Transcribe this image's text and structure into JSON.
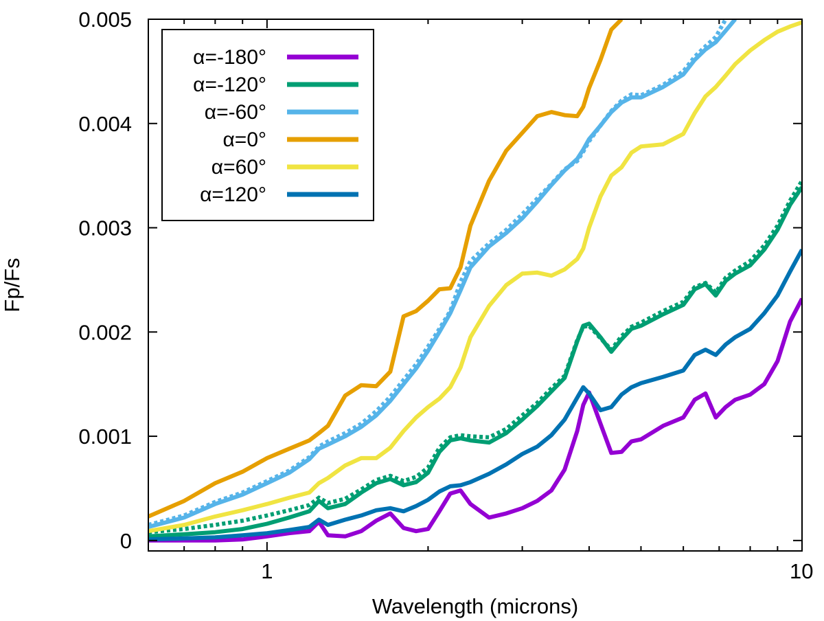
{
  "chart_data": {
    "type": "line",
    "xlabel": "Wavelength (microns)",
    "ylabel": "Fp/Fs",
    "xscale": "log",
    "xlim": [
      0.6,
      10
    ],
    "ylim": [
      -0.0001,
      0.005
    ],
    "legend_position": "top-left",
    "grid": false,
    "x_ticks": [
      {
        "value": 1,
        "label": "1"
      },
      {
        "value": 10,
        "label": "10"
      }
    ],
    "y_ticks": [
      {
        "value": 0,
        "label": "0"
      },
      {
        "value": 0.001,
        "label": "0.001"
      },
      {
        "value": 0.002,
        "label": "0.002"
      },
      {
        "value": 0.003,
        "label": "0.003"
      },
      {
        "value": 0.004,
        "label": "0.004"
      },
      {
        "value": 0.005,
        "label": "0.005"
      }
    ],
    "series": [
      {
        "name": "α=-180°",
        "color": "#9400D3",
        "x": [
          0.6,
          0.7,
          0.8,
          0.9,
          1.0,
          1.1,
          1.2,
          1.25,
          1.3,
          1.4,
          1.5,
          1.6,
          1.7,
          1.8,
          1.9,
          2.0,
          2.1,
          2.2,
          2.3,
          2.4,
          2.6,
          2.8,
          3.0,
          3.2,
          3.4,
          3.6,
          3.8,
          3.9,
          4.0,
          4.2,
          4.4,
          4.6,
          4.8,
          5.0,
          5.5,
          6.0,
          6.3,
          6.6,
          6.9,
          7.2,
          7.5,
          8.0,
          8.5,
          9.0,
          9.5,
          10.0
        ],
        "y": [
          0.0,
          0.0,
          0.0,
          1e-05,
          4e-05,
          7e-05,
          9e-05,
          0.00018,
          5e-05,
          4e-05,
          9e-05,
          0.00019,
          0.00026,
          0.00012,
          9e-05,
          0.00011,
          0.00028,
          0.00045,
          0.00048,
          0.00035,
          0.00022,
          0.00026,
          0.00031,
          0.00038,
          0.00048,
          0.00068,
          0.00105,
          0.0013,
          0.00142,
          0.00112,
          0.00084,
          0.00085,
          0.00095,
          0.00097,
          0.0011,
          0.00118,
          0.00135,
          0.00141,
          0.00118,
          0.00128,
          0.00135,
          0.0014,
          0.0015,
          0.00172,
          0.0021,
          0.00232
        ]
      },
      {
        "name": "α=-120°",
        "color": "#009E73",
        "x": [
          0.6,
          0.7,
          0.8,
          0.9,
          1.0,
          1.1,
          1.2,
          1.25,
          1.3,
          1.4,
          1.5,
          1.6,
          1.7,
          1.8,
          1.9,
          2.0,
          2.1,
          2.2,
          2.3,
          2.4,
          2.6,
          2.8,
          3.0,
          3.2,
          3.4,
          3.6,
          3.8,
          3.9,
          4.0,
          4.2,
          4.4,
          4.6,
          4.8,
          5.0,
          5.5,
          6.0,
          6.3,
          6.6,
          6.9,
          7.2,
          7.5,
          8.0,
          8.5,
          9.0,
          9.5,
          10.0
        ],
        "y": [
          4e-05,
          6e-05,
          8e-05,
          0.00011,
          0.00016,
          0.00022,
          0.00028,
          0.00038,
          0.00031,
          0.00035,
          0.00046,
          0.00055,
          0.00059,
          0.00053,
          0.00056,
          0.00065,
          0.00085,
          0.00096,
          0.00098,
          0.00096,
          0.00094,
          0.00103,
          0.00116,
          0.00129,
          0.00143,
          0.00156,
          0.00191,
          0.00206,
          0.00208,
          0.00195,
          0.00181,
          0.00193,
          0.00203,
          0.00206,
          0.00217,
          0.00226,
          0.00241,
          0.00246,
          0.00235,
          0.00249,
          0.00256,
          0.00264,
          0.00279,
          0.00298,
          0.00322,
          0.00339
        ]
      },
      {
        "name": "α=-60°",
        "color": "#56B4E9",
        "x": [
          0.6,
          0.7,
          0.8,
          0.9,
          1.0,
          1.1,
          1.2,
          1.25,
          1.3,
          1.4,
          1.5,
          1.6,
          1.7,
          1.8,
          1.9,
          2.0,
          2.1,
          2.2,
          2.3,
          2.4,
          2.6,
          2.8,
          3.0,
          3.2,
          3.4,
          3.6,
          3.8,
          3.9,
          4.0,
          4.2,
          4.4,
          4.6,
          4.8,
          5.0,
          5.5,
          6.0,
          6.3,
          6.6,
          6.9,
          7.2,
          7.5
        ],
        "y": [
          0.00013,
          0.00022,
          0.00035,
          0.00044,
          0.00055,
          0.00065,
          0.00078,
          0.00088,
          0.00092,
          0.001,
          0.00109,
          0.0012,
          0.00134,
          0.0015,
          0.00165,
          0.00182,
          0.002,
          0.00218,
          0.0024,
          0.00262,
          0.00282,
          0.00295,
          0.00309,
          0.00325,
          0.00341,
          0.00355,
          0.00366,
          0.00375,
          0.00385,
          0.00398,
          0.00411,
          0.0042,
          0.00425,
          0.00425,
          0.00435,
          0.00447,
          0.00461,
          0.00471,
          0.00478,
          0.00489,
          0.005
        ]
      },
      {
        "name": "α=0°",
        "color": "#E69F00",
        "x": [
          0.6,
          0.7,
          0.8,
          0.9,
          1.0,
          1.1,
          1.2,
          1.25,
          1.3,
          1.4,
          1.5,
          1.6,
          1.7,
          1.8,
          1.9,
          2.0,
          2.1,
          2.2,
          2.3,
          2.4,
          2.6,
          2.8,
          3.0,
          3.2,
          3.4,
          3.6,
          3.8,
          3.9,
          4.0,
          4.2,
          4.4,
          4.6
        ],
        "y": [
          0.00023,
          0.00038,
          0.00055,
          0.00066,
          0.00079,
          0.00088,
          0.00096,
          0.00103,
          0.0011,
          0.00139,
          0.00149,
          0.00148,
          0.00162,
          0.00215,
          0.0022,
          0.0023,
          0.00241,
          0.00242,
          0.00262,
          0.00302,
          0.00345,
          0.00374,
          0.00391,
          0.00407,
          0.00411,
          0.00408,
          0.00407,
          0.00416,
          0.00434,
          0.00461,
          0.0049,
          0.005
        ]
      },
      {
        "name": "α=60°",
        "color": "#F0E442",
        "x": [
          0.6,
          0.7,
          0.8,
          0.9,
          1.0,
          1.1,
          1.2,
          1.25,
          1.3,
          1.4,
          1.5,
          1.6,
          1.7,
          1.8,
          1.9,
          2.0,
          2.1,
          2.2,
          2.3,
          2.4,
          2.6,
          2.8,
          3.0,
          3.2,
          3.4,
          3.6,
          3.8,
          3.9,
          4.0,
          4.2,
          4.4,
          4.6,
          4.8,
          5.0,
          5.5,
          6.0,
          6.3,
          6.6,
          6.9,
          7.2,
          7.5,
          8.0,
          8.5,
          9.0,
          9.5,
          10.0
        ],
        "y": [
          9e-05,
          0.00015,
          0.00023,
          0.00029,
          0.00035,
          0.00041,
          0.00046,
          0.00055,
          0.0006,
          0.00072,
          0.00079,
          0.00079,
          0.00089,
          0.00105,
          0.00118,
          0.00128,
          0.00136,
          0.00147,
          0.00166,
          0.00195,
          0.00225,
          0.00245,
          0.00256,
          0.00257,
          0.00254,
          0.0026,
          0.0027,
          0.0028,
          0.003,
          0.0033,
          0.0035,
          0.00358,
          0.00372,
          0.00378,
          0.0038,
          0.0039,
          0.0041,
          0.00426,
          0.00435,
          0.00446,
          0.00457,
          0.0047,
          0.0048,
          0.00488,
          0.00493,
          0.00497
        ]
      },
      {
        "name": "α=120°",
        "color": "#0072B2",
        "x": [
          0.6,
          0.7,
          0.8,
          0.9,
          1.0,
          1.1,
          1.2,
          1.25,
          1.3,
          1.4,
          1.5,
          1.6,
          1.7,
          1.8,
          1.9,
          2.0,
          2.1,
          2.2,
          2.3,
          2.4,
          2.6,
          2.8,
          3.0,
          3.2,
          3.4,
          3.6,
          3.8,
          3.9,
          4.0,
          4.2,
          4.4,
          4.6,
          4.8,
          5.0,
          5.5,
          6.0,
          6.3,
          6.6,
          6.9,
          7.2,
          7.5,
          8.0,
          8.5,
          9.0,
          9.5,
          10.0
        ],
        "y": [
          1e-05,
          2e-05,
          3e-05,
          5e-05,
          7e-05,
          0.0001,
          0.00013,
          0.0002,
          0.00015,
          0.0002,
          0.00024,
          0.00029,
          0.00031,
          0.00028,
          0.00033,
          0.00039,
          0.00047,
          0.00052,
          0.00053,
          0.00056,
          0.00064,
          0.00073,
          0.00083,
          0.0009,
          0.00101,
          0.00116,
          0.00137,
          0.00147,
          0.00141,
          0.00125,
          0.00128,
          0.0014,
          0.00147,
          0.00151,
          0.00157,
          0.00163,
          0.00178,
          0.00183,
          0.00178,
          0.00188,
          0.00195,
          0.00203,
          0.00218,
          0.00235,
          0.00258,
          0.00279
        ]
      }
    ],
    "dotted_overlays": [
      {
        "color": "#009E73",
        "x": [
          0.6,
          0.7,
          0.8,
          0.9,
          1.0,
          1.1,
          1.2,
          1.25,
          1.3,
          1.4,
          1.5,
          1.6,
          1.7,
          1.8,
          1.9,
          2.0,
          2.1,
          2.2,
          2.3,
          2.4,
          2.6,
          2.8,
          3.0,
          3.2,
          3.4,
          3.6,
          3.8,
          3.9,
          4.0,
          4.2,
          4.4,
          4.6,
          4.8,
          5.0,
          5.5,
          6.0,
          6.3,
          6.6,
          6.9,
          7.2,
          7.5,
          8.0,
          8.5,
          9.0,
          9.5,
          10.0
        ],
        "y": [
          8e-05,
          0.00011,
          0.00015,
          0.00019,
          0.00024,
          0.00029,
          0.00034,
          0.00041,
          0.00036,
          0.0004,
          0.00049,
          0.00058,
          0.00062,
          0.00057,
          0.00061,
          0.0007,
          0.00089,
          0.00099,
          0.00101,
          0.001,
          0.00099,
          0.00107,
          0.0012,
          0.00132,
          0.00146,
          0.00158,
          0.00192,
          0.00205,
          0.00206,
          0.00194,
          0.00183,
          0.00196,
          0.00205,
          0.00209,
          0.0022,
          0.00229,
          0.00243,
          0.00247,
          0.00238,
          0.00252,
          0.00259,
          0.00268,
          0.00283,
          0.00302,
          0.00326,
          0.00345
        ]
      },
      {
        "color": "#56B4E9",
        "x": [
          0.6,
          0.7,
          0.8,
          0.9,
          1.0,
          1.1,
          1.2,
          1.25,
          1.3,
          1.4,
          1.5,
          1.6,
          1.7,
          1.8,
          1.9,
          2.0,
          2.1,
          2.2,
          2.3,
          2.4,
          2.6,
          2.8,
          3.0,
          3.2,
          3.4,
          3.6,
          3.8,
          3.9,
          4.0,
          4.2,
          4.4,
          4.6,
          4.8,
          5.0,
          5.5,
          6.0,
          6.3,
          6.6,
          6.9,
          7.2
        ],
        "y": [
          0.00015,
          0.00024,
          0.00037,
          0.00046,
          0.00057,
          0.00067,
          0.0008,
          0.0009,
          0.00095,
          0.00103,
          0.00112,
          0.00124,
          0.00138,
          0.00154,
          0.00169,
          0.00186,
          0.00203,
          0.0022,
          0.00248,
          0.00268,
          0.00285,
          0.00298,
          0.00313,
          0.00328,
          0.00342,
          0.00356,
          0.00364,
          0.00373,
          0.00383,
          0.00398,
          0.00412,
          0.00422,
          0.00428,
          0.00427,
          0.00437,
          0.0045,
          0.00464,
          0.00474,
          0.00483,
          0.005
        ]
      }
    ]
  }
}
